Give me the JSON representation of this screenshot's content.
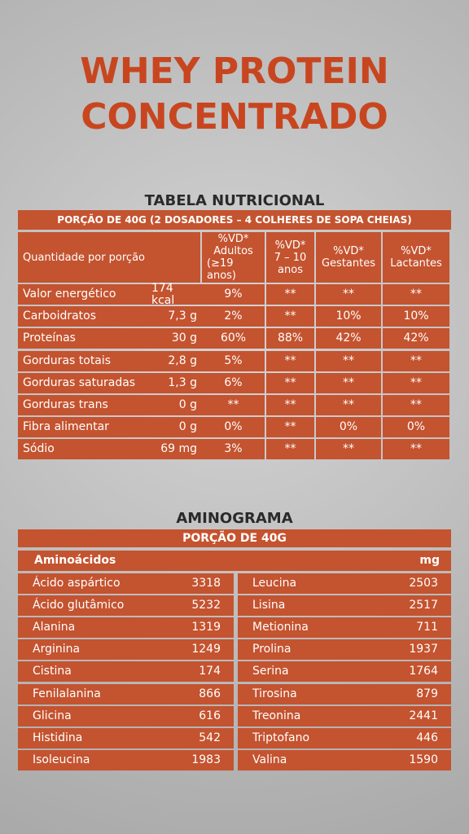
{
  "title": [
    "WHEY PROTEIN",
    "CONCENTRADO"
  ],
  "nutrition": {
    "heading": "TABELA NUTRICIONAL",
    "portion": "PORÇÃO DE 40G (2 DOSADORES – 4 COLHERES DE SOPA CHEIAS)",
    "header": [
      [
        "Quantidade por porção"
      ],
      [
        "%VD*",
        "Adultos",
        "(≥19 anos)"
      ],
      [
        "%VD*",
        "7 – 10",
        "anos"
      ],
      [
        "%VD*",
        "Gestantes"
      ],
      [
        "%VD*",
        "Lactantes"
      ]
    ],
    "rows": [
      [
        "Valor energético",
        "174 kcal",
        "9%",
        "**",
        "**",
        "**"
      ],
      [
        "Carboidratos",
        "7,3 g",
        "2%",
        "**",
        "10%",
        "10%"
      ],
      [
        "Proteínas",
        "30 g",
        "60%",
        "88%",
        "42%",
        "42%"
      ],
      [
        "Gorduras totais",
        "2,8 g",
        "5%",
        "**",
        "**",
        "**"
      ],
      [
        "Gorduras saturadas",
        "1,3 g",
        "6%",
        "**",
        "**",
        "**"
      ],
      [
        "Gorduras trans",
        "0 g",
        "**",
        "**",
        "**",
        "**"
      ],
      [
        "Fibra alimentar",
        "0 g",
        "0%",
        "**",
        "0%",
        "0%"
      ],
      [
        "Sódio",
        "69 mg",
        "3%",
        "**",
        "**",
        "**"
      ]
    ]
  },
  "aminogram": {
    "heading": "AMINOGRAMA",
    "portion": "PORÇÃO DE 40G",
    "header": [
      "Aminoácidos",
      "mg"
    ],
    "left": [
      [
        "Ácido aspártico",
        "3318"
      ],
      [
        "Ácido glutâmico",
        "5232"
      ],
      [
        "Alanina",
        "1319"
      ],
      [
        "Arginina",
        "1249"
      ],
      [
        "Cistina",
        "174"
      ],
      [
        "Fenilalanina",
        "866"
      ],
      [
        "Glicina",
        "616"
      ],
      [
        "Histidina",
        "542"
      ],
      [
        "Isoleucina",
        "1983"
      ]
    ],
    "right": [
      [
        "Leucina",
        "2503"
      ],
      [
        "Lisina",
        "2517"
      ],
      [
        "Metionina",
        "711"
      ],
      [
        "Prolina",
        "1937"
      ],
      [
        "Serina",
        "1764"
      ],
      [
        "Tirosina",
        "879"
      ],
      [
        "Treonina",
        "2441"
      ],
      [
        "Triptofano",
        "446"
      ],
      [
        "Valina",
        "1590"
      ]
    ]
  }
}
